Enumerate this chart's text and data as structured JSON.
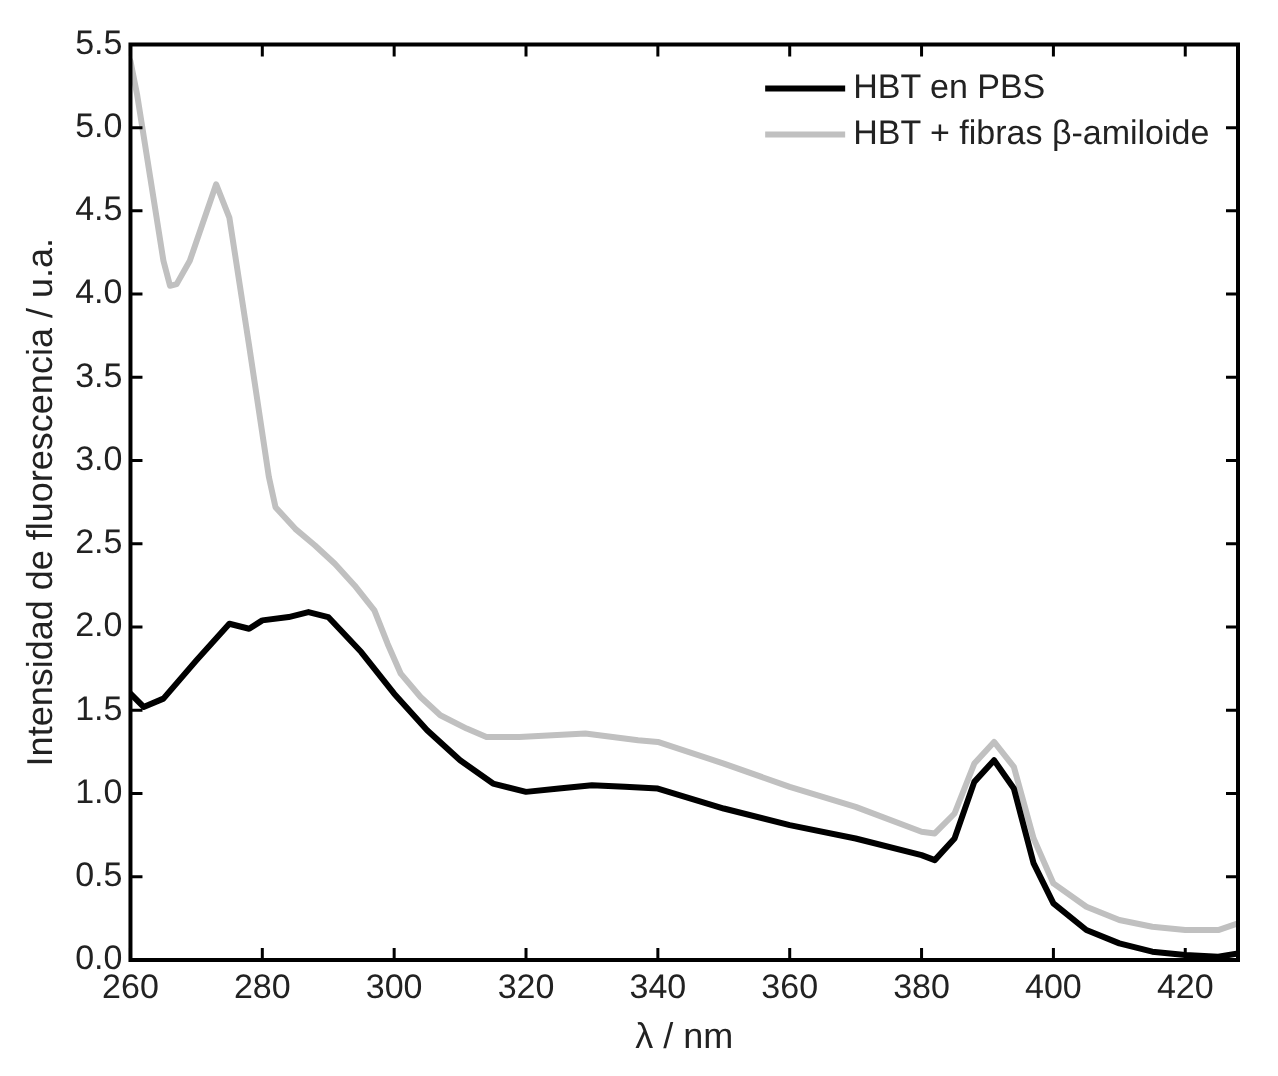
{
  "chart_data": {
    "type": "line",
    "xlabel": "λ / nm",
    "ylabel": "Intensidad de fluorescencia / u.a.",
    "xlim": [
      260,
      428
    ],
    "xticks": [
      260,
      280,
      300,
      320,
      340,
      360,
      380,
      400,
      420
    ],
    "ylim": [
      0,
      5.5
    ],
    "yticks": [
      {
        "value": 0,
        "label": "0.0"
      },
      0.5,
      {
        "value": 1,
        "label": "1.0"
      },
      1.5,
      {
        "value": 2,
        "label": "2.0"
      },
      2.5,
      {
        "value": 3,
        "label": "3.0"
      },
      3.5,
      {
        "value": 4,
        "label": "4.0"
      },
      4.5,
      {
        "value": 5,
        "label": "5.0"
      },
      5.5
    ],
    "grid": false,
    "legend": "top right",
    "marker": "none",
    "line_style": "solid",
    "series": [
      {
        "name": "HBT en PBS",
        "color": "#000000",
        "x": [
          260,
          262,
          265,
          270,
          275,
          278,
          280,
          284,
          287,
          290,
          295,
          300,
          305,
          310,
          315,
          320,
          325,
          330,
          335,
          340,
          350,
          360,
          370,
          380,
          382,
          385,
          388,
          391,
          394,
          397,
          400,
          405,
          410,
          415,
          420,
          425,
          428
        ],
        "values": [
          1.6,
          1.52,
          1.57,
          1.8,
          2.02,
          1.99,
          2.04,
          2.06,
          2.09,
          2.06,
          1.85,
          1.6,
          1.38,
          1.2,
          1.06,
          1.01,
          1.03,
          1.05,
          1.04,
          1.03,
          0.91,
          0.81,
          0.73,
          0.63,
          0.6,
          0.73,
          1.07,
          1.2,
          1.03,
          0.58,
          0.34,
          0.18,
          0.1,
          0.05,
          0.03,
          0.02,
          0.04
        ]
      },
      {
        "name": "HBT + fibras β-amiloide",
        "color": "#c0c0c0",
        "x": [
          260,
          261,
          263,
          265,
          266,
          267,
          269,
          273,
          275,
          278,
          281,
          282,
          285,
          288,
          291,
          294,
          297,
          299,
          301,
          304,
          307,
          311,
          314,
          319,
          329,
          337,
          340,
          350,
          360,
          370,
          380,
          382,
          385,
          388,
          391,
          394,
          397,
          400,
          405,
          410,
          415,
          420,
          425,
          428
        ],
        "values": [
          5.4,
          5.2,
          4.7,
          4.2,
          4.05,
          4.06,
          4.2,
          4.66,
          4.46,
          3.69,
          2.9,
          2.72,
          2.59,
          2.49,
          2.38,
          2.25,
          2.1,
          1.9,
          1.72,
          1.58,
          1.47,
          1.39,
          1.34,
          1.34,
          1.36,
          1.32,
          1.31,
          1.18,
          1.04,
          0.92,
          0.77,
          0.76,
          0.88,
          1.18,
          1.31,
          1.16,
          0.73,
          0.46,
          0.32,
          0.24,
          0.2,
          0.18,
          0.18,
          0.22
        ]
      }
    ]
  }
}
